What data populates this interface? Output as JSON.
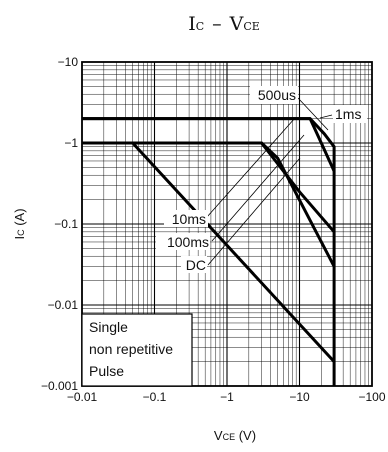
{
  "chart_data": {
    "type": "line",
    "title_prefix": "I",
    "title_prefix_sub": "C",
    "title_dash": "–",
    "title_suffix": "V",
    "title_suffix_sub": "CE",
    "xlabel_main": "V",
    "xlabel_sub": "CE",
    "xlabel_unit": " (V)",
    "ylabel_main": "I",
    "ylabel_sub": "C",
    "ylabel_unit": " (A)",
    "x_scale": "log",
    "y_scale": "log",
    "xlim": [
      0.01,
      100
    ],
    "ylim": [
      0.001,
      10
    ],
    "x_tick_labels": [
      "−0.01",
      "−0.1",
      "−1",
      "−10",
      "−100"
    ],
    "y_tick_labels": [
      "−10",
      "−1",
      "−0.1",
      "−0.01",
      "−0.001"
    ],
    "grid": true,
    "series": [
      {
        "name": "500us",
        "x": [
          0.01,
          14,
          22,
          30,
          30
        ],
        "y": [
          2,
          2,
          1.3,
          0.9,
          0.001
        ]
      },
      {
        "name": "1ms",
        "x": [
          0.01,
          14,
          20,
          30
        ],
        "y": [
          2,
          2,
          1.0,
          0.45
        ]
      },
      {
        "name": "10ms",
        "x": [
          0.01,
          3,
          10,
          30
        ],
        "y": [
          1,
          1,
          0.25,
          0.08
        ]
      },
      {
        "name": "100ms",
        "x": [
          0.01,
          3,
          5,
          30
        ],
        "y": [
          1,
          1,
          0.65,
          0.03
        ]
      },
      {
        "name": "DC",
        "x": [
          0.01,
          0.05,
          30
        ],
        "y": [
          1,
          1,
          0.002
        ]
      }
    ],
    "annotations": [
      "500us",
      "1ms",
      "10ms",
      "100ms",
      "DC"
    ],
    "legend_lines": [
      "Single",
      "non repetitive",
      "Pulse"
    ]
  }
}
